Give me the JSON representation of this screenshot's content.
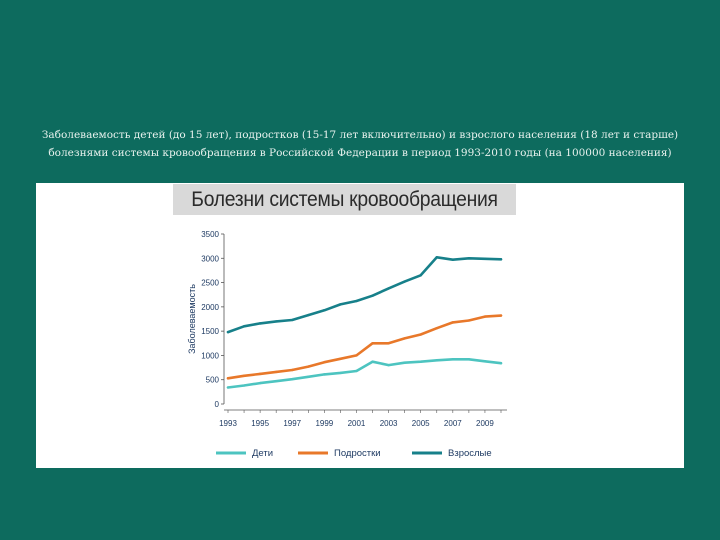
{
  "caption": "Заболеваемость детей (до 15 лет), подростков (15-17 лет включительно) и взрослого населения (18 лет и старше) болезнями системы кровообращения в Российской Федерации в период 1993-2010 годы (на 100000 населения)",
  "chart_data": {
    "type": "line",
    "title": "Болезни системы кровообращения",
    "xlabel": "",
    "ylabel": "Заболеваемость",
    "ylim": [
      0,
      3500
    ],
    "yticks": [
      0,
      500,
      1000,
      1500,
      2000,
      2500,
      3000,
      3500
    ],
    "xticks": [
      1993,
      1995,
      1997,
      1999,
      2001,
      2003,
      2005,
      2007,
      2009
    ],
    "x": [
      1993,
      1994,
      1995,
      1996,
      1997,
      1998,
      1999,
      2000,
      2001,
      2002,
      2003,
      2004,
      2005,
      2006,
      2007,
      2008,
      2009,
      2010
    ],
    "grid": false,
    "legend": "bottom",
    "series": [
      {
        "name": "Дети",
        "color": "#4dc4c0",
        "values": [
          340,
          380,
          430,
          470,
          510,
          560,
          610,
          640,
          680,
          870,
          800,
          850,
          870,
          900,
          920,
          920,
          880,
          840
        ]
      },
      {
        "name": "Подростки",
        "color": "#e8782a",
        "values": [
          530,
          580,
          620,
          660,
          700,
          770,
          860,
          930,
          1000,
          1250,
          1250,
          1350,
          1430,
          1560,
          1680,
          1720,
          1800,
          1820
        ]
      },
      {
        "name": "Взрослые",
        "color": "#17808a",
        "values": [
          1480,
          1600,
          1660,
          1700,
          1730,
          1830,
          1930,
          2050,
          2120,
          2230,
          2380,
          2520,
          2650,
          3020,
          2970,
          3000,
          2990,
          2980
        ]
      }
    ]
  }
}
